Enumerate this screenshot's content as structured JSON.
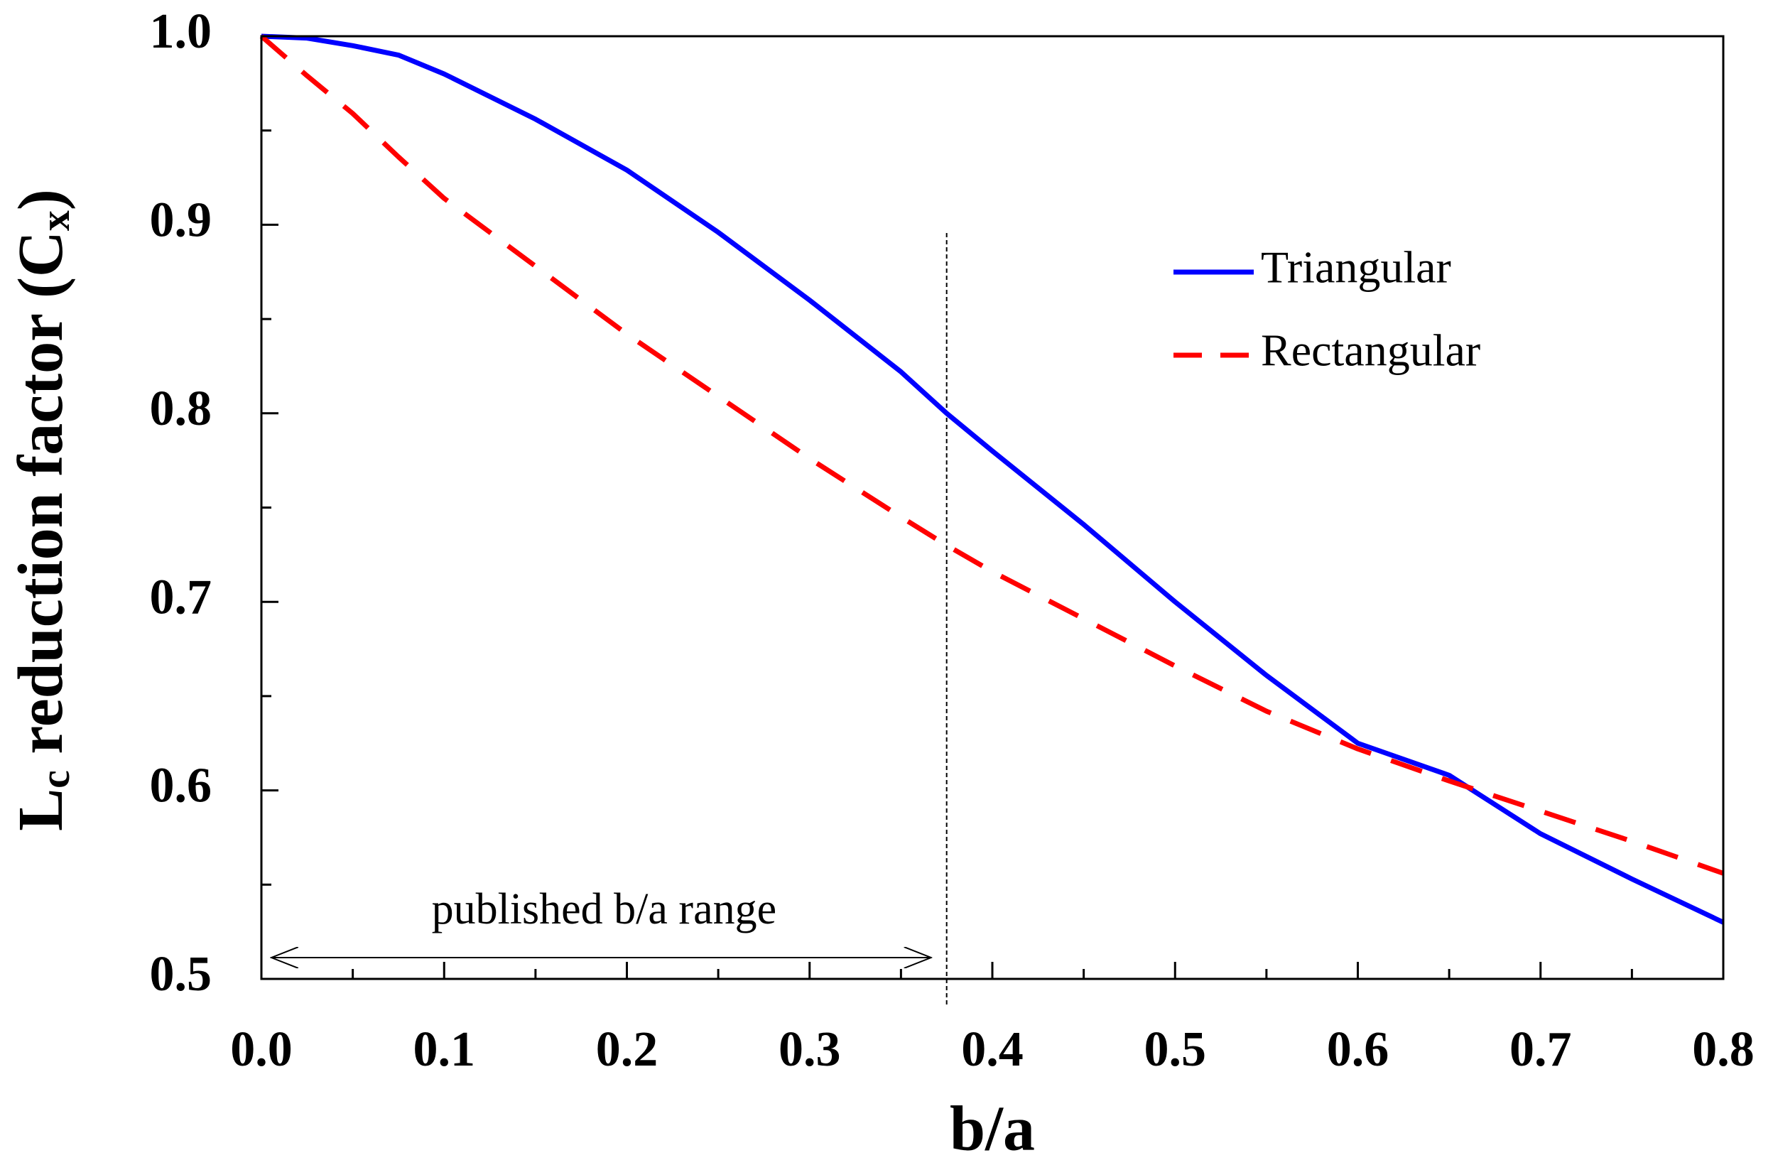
{
  "chart_data": {
    "type": "line",
    "xlabel": "b/a",
    "ylabel": [
      "L",
      "c",
      " reduction factor (C",
      "x",
      ")"
    ],
    "x": [
      0,
      0.025,
      0.05,
      0.075,
      0.1,
      0.15,
      0.2,
      0.25,
      0.3,
      0.35,
      0.375,
      0.4,
      0.45,
      0.5,
      0.55,
      0.6,
      0.65,
      0.7,
      0.75,
      0.8
    ],
    "series": [
      {
        "name": "Triangular",
        "color": "#0000ff",
        "dash": false,
        "values": [
          1.0,
          0.999,
          0.995,
          0.99,
          0.98,
          0.956,
          0.929,
          0.896,
          0.86,
          0.822,
          0.8,
          0.78,
          0.741,
          0.7,
          0.661,
          0.625,
          0.608,
          0.577,
          0.553,
          0.53
        ]
      },
      {
        "name": "Rectangular",
        "color": "#ff0000",
        "dash": true,
        "values": [
          1.0,
          0.979,
          0.959,
          0.936,
          0.914,
          0.878,
          0.842,
          0.809,
          0.776,
          0.745,
          0.73,
          0.716,
          0.691,
          0.666,
          0.642,
          0.622,
          0.605,
          0.589,
          0.573,
          0.556
        ]
      }
    ],
    "xlim": [
      0,
      0.8
    ],
    "ylim": [
      0.5,
      1.0
    ],
    "xticks": [
      {
        "value": 0,
        "label": "0.0"
      },
      0.1,
      0.2,
      0.3,
      0.4,
      0.5,
      0.6,
      0.7,
      0.8
    ],
    "yticks": [
      0.5,
      0.6,
      0.7,
      0.8,
      0.9,
      {
        "value": 1,
        "label": "1.0"
      }
    ],
    "annotation": {
      "text": "published b/a range",
      "x": 0.375
    },
    "legend": "upper right",
    "grid": false
  }
}
